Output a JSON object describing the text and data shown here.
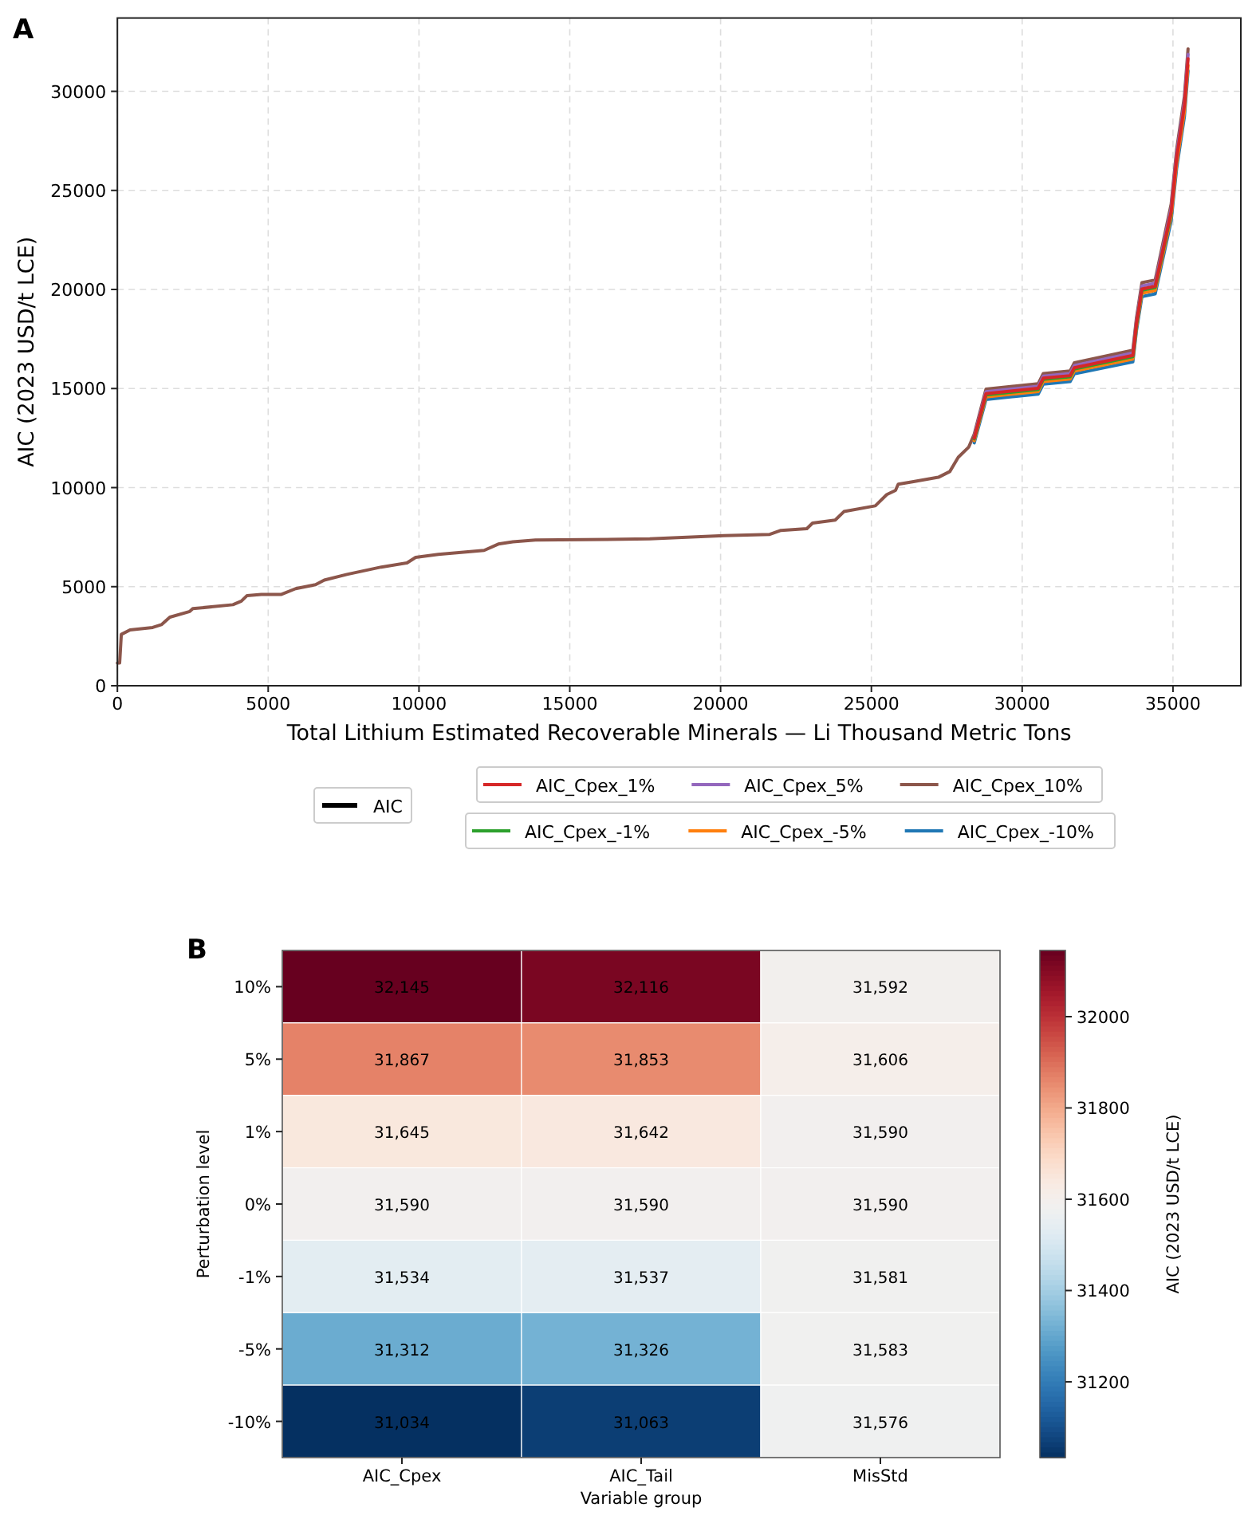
{
  "chart_data": [
    {
      "type": "line",
      "title": "A",
      "xlabel": "Total Lithium Estimated Recoverable Minerals — Li Thousand Metric Tons",
      "ylabel": "AIC (2023 USD/t LCE)",
      "x": [
        0,
        75,
        130,
        420,
        1170,
        1460,
        1740,
        2400,
        2500,
        3830,
        4110,
        4300,
        4770,
        5440,
        5910,
        6570,
        6860,
        7610,
        8750,
        9600,
        9890,
        10640,
        12160,
        12630,
        13110,
        13860,
        17650,
        20110,
        21630,
        22000,
        22860,
        23050,
        23800,
        24090,
        25130,
        25510,
        25800,
        25890,
        26360,
        27220,
        27600,
        27880,
        28230,
        28410,
        28800,
        30530,
        30700,
        31590,
        31730,
        33670,
        33790,
        33970,
        34410,
        34940,
        35120,
        35380,
        35500
      ],
      "series": [
        {
          "name": "AIC",
          "color": "#000000",
          "values": [
            null,
            null,
            null,
            null,
            null,
            null,
            null,
            null,
            null,
            null,
            null,
            null,
            null,
            null,
            null,
            null,
            null,
            null,
            null,
            null,
            null,
            null,
            null,
            null,
            null,
            null,
            null,
            null,
            null,
            null,
            null,
            null,
            null,
            null,
            null,
            null,
            null,
            null,
            null,
            null,
            null,
            null,
            null,
            null,
            null,
            null,
            null,
            null,
            null,
            null,
            null,
            null,
            null,
            null,
            null,
            null,
            null
          ]
        },
        {
          "name": "AIC_Cpex_1%",
          "color": "#d62728",
          "values": [
            null,
            null,
            null,
            null,
            null,
            null,
            null,
            null,
            null,
            null,
            null,
            null,
            null,
            null,
            null,
            null,
            null,
            null,
            null,
            null,
            null,
            null,
            null,
            null,
            null,
            null,
            null,
            null,
            null,
            null,
            null,
            null,
            null,
            null,
            null,
            null,
            null,
            null,
            null,
            null,
            null,
            null,
            null,
            12500,
            14740,
            15010,
            15520,
            15650,
            16050,
            16670,
            18280,
            20020,
            20160,
            23930,
            26620,
            29300,
            31645
          ]
        },
        {
          "name": "AIC_Cpex_5%",
          "color": "#9467bd",
          "values": [
            null,
            null,
            null,
            null,
            null,
            null,
            null,
            null,
            null,
            null,
            null,
            null,
            null,
            null,
            null,
            null,
            null,
            null,
            null,
            null,
            null,
            null,
            null,
            null,
            null,
            null,
            null,
            null,
            null,
            null,
            null,
            null,
            null,
            null,
            null,
            null,
            null,
            null,
            null,
            null,
            null,
            null,
            null,
            12590,
            14840,
            15110,
            15630,
            15760,
            16160,
            16790,
            18410,
            20170,
            20310,
            24100,
            26800,
            29510,
            31867
          ]
        },
        {
          "name": "AIC_Cpex_10%",
          "color": "#8c564b",
          "values": [
            1150,
            1150,
            2590,
            2820,
            2940,
            3080,
            3460,
            3750,
            3890,
            4090,
            4270,
            4550,
            4610,
            4610,
            4900,
            5100,
            5330,
            5620,
            5990,
            6200,
            6480,
            6630,
            6830,
            7150,
            7260,
            7350,
            7410,
            7580,
            7640,
            7840,
            7930,
            8210,
            8360,
            8790,
            9080,
            9650,
            9860,
            10170,
            10290,
            10520,
            10810,
            11530,
            12050,
            12700,
            14970,
            15240,
            15760,
            15890,
            16300,
            16930,
            18570,
            20340,
            20480,
            24310,
            27040,
            29760,
            32145
          ]
        },
        {
          "name": "AIC_Cpex_-1%",
          "color": "#2ca02c",
          "values": [
            null,
            null,
            null,
            null,
            null,
            null,
            null,
            null,
            null,
            null,
            null,
            null,
            null,
            null,
            null,
            null,
            null,
            null,
            null,
            null,
            null,
            null,
            null,
            null,
            null,
            null,
            null,
            null,
            null,
            null,
            null,
            null,
            null,
            null,
            null,
            null,
            null,
            null,
            null,
            null,
            null,
            null,
            null,
            12460,
            14680,
            14950,
            15460,
            15590,
            15990,
            16610,
            18220,
            19960,
            20100,
            23850,
            null,
            null,
            null
          ]
        },
        {
          "name": "AIC_Cpex_-5%",
          "color": "#ff7f0e",
          "values": [
            null,
            null,
            null,
            null,
            null,
            null,
            null,
            null,
            null,
            null,
            null,
            null,
            null,
            null,
            null,
            null,
            null,
            null,
            null,
            null,
            null,
            null,
            null,
            null,
            null,
            null,
            null,
            null,
            null,
            null,
            null,
            null,
            null,
            null,
            null,
            null,
            null,
            null,
            null,
            null,
            null,
            null,
            null,
            12370,
            14580,
            14850,
            15350,
            15480,
            15880,
            16490,
            18090,
            19810,
            19950,
            23680,
            26340,
            28990,
            31312
          ]
        },
        {
          "name": "AIC_Cpex_-10%",
          "color": "#1f77b4",
          "values": [
            null,
            null,
            null,
            null,
            null,
            null,
            null,
            null,
            null,
            null,
            null,
            null,
            null,
            null,
            null,
            null,
            null,
            null,
            null,
            null,
            null,
            null,
            null,
            null,
            null,
            null,
            null,
            null,
            null,
            null,
            null,
            null,
            null,
            null,
            null,
            null,
            null,
            null,
            null,
            null,
            null,
            null,
            null,
            12260,
            14450,
            14720,
            15220,
            15350,
            15740,
            16350,
            17930,
            19640,
            19780,
            23470,
            26100,
            28740,
            31034
          ]
        }
      ],
      "xlim": [
        0,
        37250
      ],
      "ylim": [
        0,
        33700
      ],
      "xticks": [
        0,
        5000,
        10000,
        15000,
        20000,
        25000,
        30000,
        35000
      ],
      "yticks": [
        0,
        5000,
        10000,
        15000,
        20000,
        25000,
        30000
      ],
      "grid": true,
      "legend": "bottom"
    },
    {
      "type": "heatmap",
      "title": "B",
      "xlabel": "Variable group",
      "ylabel": "Perturbation level",
      "clabel": "AIC (2023 USD/t LCE)",
      "categories": [
        "AIC_Cpex",
        "AIC_Tail",
        "MisStd"
      ],
      "y_categories": [
        "10%",
        "5%",
        "1%",
        "0%",
        "-1%",
        "-5%",
        "-10%"
      ],
      "cells": [
        [
          32145,
          32116,
          31592
        ],
        [
          31867,
          31853,
          31606
        ],
        [
          31645,
          31642,
          31590
        ],
        [
          31590,
          31590,
          31590
        ],
        [
          31534,
          31537,
          31581
        ],
        [
          31312,
          31326,
          31583
        ],
        [
          31034,
          31063,
          31576
        ]
      ],
      "cell_labels": [
        [
          "32,145",
          "32,116",
          "31,592"
        ],
        [
          "31,867",
          "31,853",
          "31,606"
        ],
        [
          "31,645",
          "31,642",
          "31,590"
        ],
        [
          "31,590",
          "31,590",
          "31,590"
        ],
        [
          "31,534",
          "31,537",
          "31,581"
        ],
        [
          "31,312",
          "31,326",
          "31,583"
        ],
        [
          "31,034",
          "31,063",
          "31,576"
        ]
      ],
      "clim": [
        31034,
        32145
      ],
      "cticks": [
        31200,
        31400,
        31600,
        31800,
        32000
      ]
    }
  ]
}
